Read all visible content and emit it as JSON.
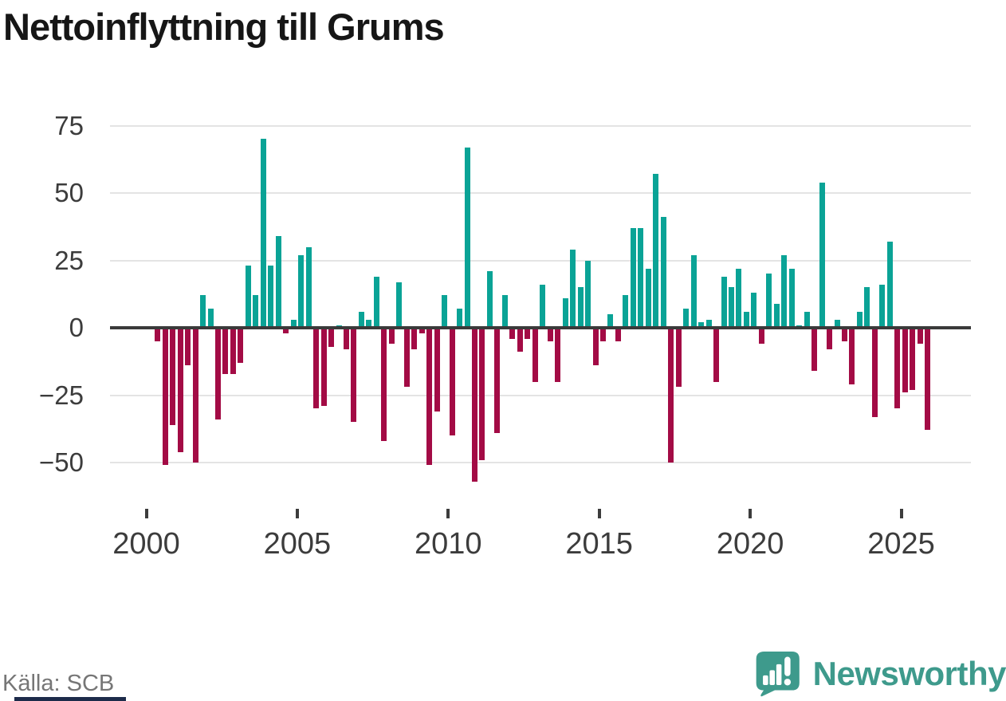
{
  "title": "Nettoinflyttning till Grums",
  "source_note": "Källa: SCB",
  "brand": {
    "name": "Newsworthy",
    "logo_icon": "speech-bubble-bar-chart-icon"
  },
  "colors": {
    "positive_bar": "#0aa396",
    "negative_bar": "#a30b45",
    "gridline": "#e4e4e4",
    "zero_line": "#3a3a3a",
    "axis_text": "#3c3c3c",
    "muted_text": "#767676",
    "brand_teal": "#3e9a8c",
    "navy_strip": "#1d2b4a"
  },
  "chart_data": {
    "type": "bar",
    "title": "Nettoinflyttning till Grums",
    "frequency": "quarterly",
    "x_tick_labels": [
      "2000",
      "2005",
      "2010",
      "2015",
      "2020",
      "2025"
    ],
    "y_ticks": [
      75,
      50,
      25,
      0,
      -25,
      -50
    ],
    "ylim": [
      -62,
      80
    ],
    "grid": "horizontal",
    "legend": "none",
    "years": [
      {
        "year": 2000,
        "quarters": [
          null,
          -5,
          -51,
          -36
        ]
      },
      {
        "year": 2001,
        "quarters": [
          -46,
          -14,
          -50,
          12
        ]
      },
      {
        "year": 2002,
        "quarters": [
          7,
          -34,
          -17,
          -17
        ]
      },
      {
        "year": 2003,
        "quarters": [
          -13,
          23,
          12,
          70
        ]
      },
      {
        "year": 2004,
        "quarters": [
          23,
          34,
          -2,
          3
        ]
      },
      {
        "year": 2005,
        "quarters": [
          27,
          30,
          -30,
          -29
        ]
      },
      {
        "year": 2006,
        "quarters": [
          -7,
          1,
          -8,
          -35
        ]
      },
      {
        "year": 2007,
        "quarters": [
          6,
          3,
          19,
          -42
        ]
      },
      {
        "year": 2008,
        "quarters": [
          -6,
          17,
          -22,
          -8
        ]
      },
      {
        "year": 2009,
        "quarters": [
          -2,
          -51,
          -31,
          12
        ]
      },
      {
        "year": 2010,
        "quarters": [
          -40,
          7,
          67,
          -57
        ]
      },
      {
        "year": 2011,
        "quarters": [
          -49,
          21,
          -39,
          12
        ]
      },
      {
        "year": 2012,
        "quarters": [
          -4,
          -9,
          -4,
          -20
        ]
      },
      {
        "year": 2013,
        "quarters": [
          16,
          -5,
          -20,
          11
        ]
      },
      {
        "year": 2014,
        "quarters": [
          29,
          15,
          25,
          -14
        ]
      },
      {
        "year": 2015,
        "quarters": [
          -5,
          5,
          -5,
          12
        ]
      },
      {
        "year": 2016,
        "quarters": [
          37,
          37,
          22,
          57
        ]
      },
      {
        "year": 2017,
        "quarters": [
          41,
          -50,
          -22,
          7
        ]
      },
      {
        "year": 2018,
        "quarters": [
          27,
          2,
          3,
          -20
        ]
      },
      {
        "year": 2019,
        "quarters": [
          19,
          15,
          22,
          6
        ]
      },
      {
        "year": 2020,
        "quarters": [
          13,
          -6,
          20,
          9
        ]
      },
      {
        "year": 2021,
        "quarters": [
          27,
          22,
          1,
          6
        ]
      },
      {
        "year": 2022,
        "quarters": [
          -16,
          54,
          -8,
          3
        ]
      },
      {
        "year": 2023,
        "quarters": [
          -5,
          -21,
          6,
          15
        ]
      },
      {
        "year": 2024,
        "quarters": [
          -33,
          16,
          32,
          -30
        ]
      },
      {
        "year": 2025,
        "quarters": [
          -24,
          -23,
          -6,
          -38
        ]
      }
    ]
  }
}
